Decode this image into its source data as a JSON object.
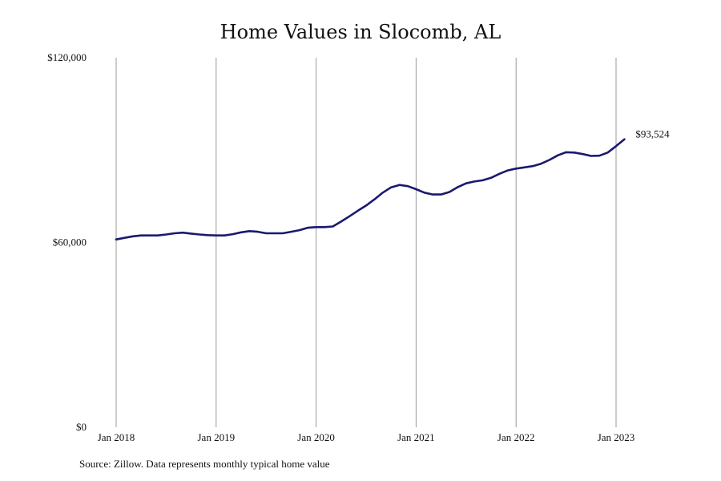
{
  "chart_data": {
    "type": "line",
    "title": "Home Values in Slocomb, AL",
    "xlabel": "",
    "ylabel": "",
    "ylim": [
      0,
      120000
    ],
    "y_ticks": [
      "$120,000",
      "$60,000",
      "$0"
    ],
    "y_tick_values": [
      120000,
      60000,
      0
    ],
    "x_tick_labels": [
      "Jan 2018",
      "Jan 2019",
      "Jan 2020",
      "Jan 2021",
      "Jan 2022",
      "Jan 2023"
    ],
    "grid": "vertical lines at Jan of each year",
    "line_color": "#1a1a6e",
    "series": [
      {
        "values": [
          {
            "x": "2018-01",
            "y": 61000
          },
          {
            "x": "2018-02",
            "y": 61500
          },
          {
            "x": "2018-03",
            "y": 62000
          },
          {
            "x": "2018-04",
            "y": 62300
          },
          {
            "x": "2018-05",
            "y": 62300
          },
          {
            "x": "2018-06",
            "y": 62300
          },
          {
            "x": "2018-07",
            "y": 62600
          },
          {
            "x": "2018-08",
            "y": 63000
          },
          {
            "x": "2018-09",
            "y": 63200
          },
          {
            "x": "2018-10",
            "y": 62900
          },
          {
            "x": "2018-11",
            "y": 62600
          },
          {
            "x": "2018-12",
            "y": 62400
          },
          {
            "x": "2019-01",
            "y": 62300
          },
          {
            "x": "2019-02",
            "y": 62300
          },
          {
            "x": "2019-03",
            "y": 62700
          },
          {
            "x": "2019-04",
            "y": 63300
          },
          {
            "x": "2019-05",
            "y": 63700
          },
          {
            "x": "2019-06",
            "y": 63500
          },
          {
            "x": "2019-07",
            "y": 63000
          },
          {
            "x": "2019-08",
            "y": 63000
          },
          {
            "x": "2019-09",
            "y": 63000
          },
          {
            "x": "2019-10",
            "y": 63500
          },
          {
            "x": "2019-11",
            "y": 64000
          },
          {
            "x": "2019-12",
            "y": 64800
          },
          {
            "x": "2020-01",
            "y": 65000
          },
          {
            "x": "2020-02",
            "y": 65000
          },
          {
            "x": "2020-03",
            "y": 65200
          },
          {
            "x": "2020-04",
            "y": 66800
          },
          {
            "x": "2020-05",
            "y": 68500
          },
          {
            "x": "2020-06",
            "y": 70300
          },
          {
            "x": "2020-07",
            "y": 72000
          },
          {
            "x": "2020-08",
            "y": 74000
          },
          {
            "x": "2020-09",
            "y": 76200
          },
          {
            "x": "2020-10",
            "y": 77900
          },
          {
            "x": "2020-11",
            "y": 78700
          },
          {
            "x": "2020-12",
            "y": 78300
          },
          {
            "x": "2021-01",
            "y": 77300
          },
          {
            "x": "2021-02",
            "y": 76200
          },
          {
            "x": "2021-03",
            "y": 75600
          },
          {
            "x": "2021-04",
            "y": 75600
          },
          {
            "x": "2021-05",
            "y": 76400
          },
          {
            "x": "2021-06",
            "y": 78000
          },
          {
            "x": "2021-07",
            "y": 79200
          },
          {
            "x": "2021-08",
            "y": 79800
          },
          {
            "x": "2021-09",
            "y": 80200
          },
          {
            "x": "2021-10",
            "y": 81000
          },
          {
            "x": "2021-11",
            "y": 82300
          },
          {
            "x": "2021-12",
            "y": 83400
          },
          {
            "x": "2022-01",
            "y": 84000
          },
          {
            "x": "2022-02",
            "y": 84400
          },
          {
            "x": "2022-03",
            "y": 84800
          },
          {
            "x": "2022-04",
            "y": 85600
          },
          {
            "x": "2022-05",
            "y": 86800
          },
          {
            "x": "2022-06",
            "y": 88300
          },
          {
            "x": "2022-07",
            "y": 89300
          },
          {
            "x": "2022-08",
            "y": 89200
          },
          {
            "x": "2022-09",
            "y": 88700
          },
          {
            "x": "2022-10",
            "y": 88100
          },
          {
            "x": "2022-11",
            "y": 88200
          },
          {
            "x": "2022-12",
            "y": 89200
          },
          {
            "x": "2023-01",
            "y": 91300
          },
          {
            "x": "2023-02",
            "y": 93524
          }
        ]
      }
    ],
    "end_label": "$93,524",
    "source_note": "Source: Zillow. Data represents monthly typical home value"
  }
}
